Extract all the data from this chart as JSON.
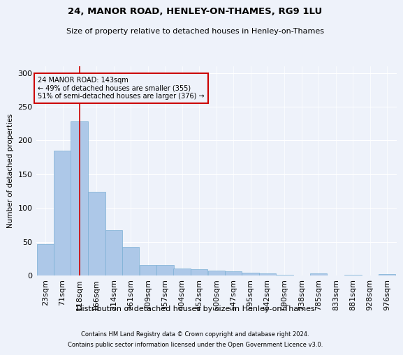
{
  "title": "24, MANOR ROAD, HENLEY-ON-THAMES, RG9 1LU",
  "subtitle": "Size of property relative to detached houses in Henley-on-Thames",
  "xlabel": "Distribution of detached houses by size in Henley-on-Thames",
  "ylabel": "Number of detached properties",
  "footnote1": "Contains HM Land Registry data © Crown copyright and database right 2024.",
  "footnote2": "Contains public sector information licensed under the Open Government Licence v3.0.",
  "bar_color": "#adc8e8",
  "bar_edge_color": "#7aafd4",
  "bg_color": "#eef2fa",
  "grid_color": "#ffffff",
  "annotation_box_color": "#cc0000",
  "annotation_text": "24 MANOR ROAD: 143sqm\n← 49% of detached houses are smaller (355)\n51% of semi-detached houses are larger (376) →",
  "property_line_x": 143,
  "categories": [
    "23sqm",
    "71sqm",
    "118sqm",
    "166sqm",
    "214sqm",
    "261sqm",
    "309sqm",
    "357sqm",
    "404sqm",
    "452sqm",
    "500sqm",
    "547sqm",
    "595sqm",
    "642sqm",
    "690sqm",
    "738sqm",
    "785sqm",
    "833sqm",
    "881sqm",
    "928sqm",
    "976sqm"
  ],
  "bin_edges": [
    23,
    71,
    118,
    166,
    214,
    261,
    309,
    357,
    404,
    452,
    500,
    547,
    595,
    642,
    690,
    738,
    785,
    833,
    881,
    928,
    976
  ],
  "bar_heights": [
    47,
    185,
    228,
    124,
    67,
    42,
    15,
    15,
    10,
    9,
    7,
    6,
    4,
    3,
    1,
    0,
    3,
    0,
    1,
    0,
    2
  ],
  "ylim": [
    0,
    310
  ],
  "yticks": [
    0,
    50,
    100,
    150,
    200,
    250,
    300
  ]
}
